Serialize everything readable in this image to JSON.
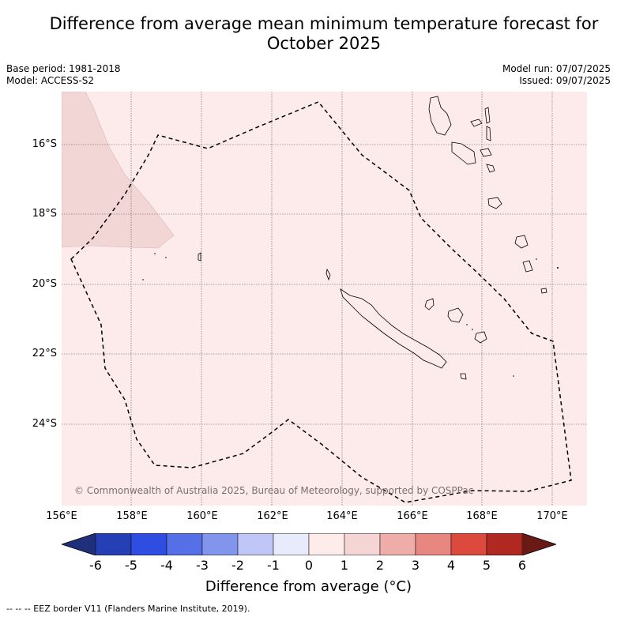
{
  "title": "Difference from average mean minimum temperature forecast for October 2025",
  "title_line1": "Difference from average mean minimum temperature forecast for",
  "title_line2": "October 2025",
  "base_period": "Base period: 1981-2018",
  "model": "Model: ACCESS-S2",
  "model_run": "Model run: 07/07/2025",
  "issued": "Issued: 09/07/2025",
  "copyright": "© Commonwealth of Australia 2025, Bureau of Meteorology, supported by COSPPac",
  "lat_labels": [
    "16°S",
    "18°S",
    "20°S",
    "22°S",
    "24°S"
  ],
  "lon_labels": [
    "156°E",
    "158°E",
    "160°E",
    "162°E",
    "164°E",
    "166°E",
    "168°E",
    "170°E"
  ],
  "colorbar": {
    "ticks": [
      "-6",
      "-5",
      "-4",
      "-3",
      "-2",
      "-1",
      "0",
      "1",
      "2",
      "3",
      "4",
      "5",
      "6"
    ],
    "colors": [
      "#1f2f7a",
      "#2440b4",
      "#2f4de0",
      "#5570e6",
      "#8295ec",
      "#bfc6f5",
      "#e8ebfb",
      "#fdecea",
      "#f5d5d3",
      "#efadaa",
      "#e8877f",
      "#dc4a3e",
      "#b02822",
      "#6a1a14"
    ],
    "label": "Difference from average (°C)"
  },
  "legend_note": "--  --  -- EEZ border V11 (Flanders Marine Institute, 2019).",
  "map_colors": {
    "background": "#fcebea",
    "warm_patch": "#f2d6d5",
    "grid": "#555555"
  }
}
